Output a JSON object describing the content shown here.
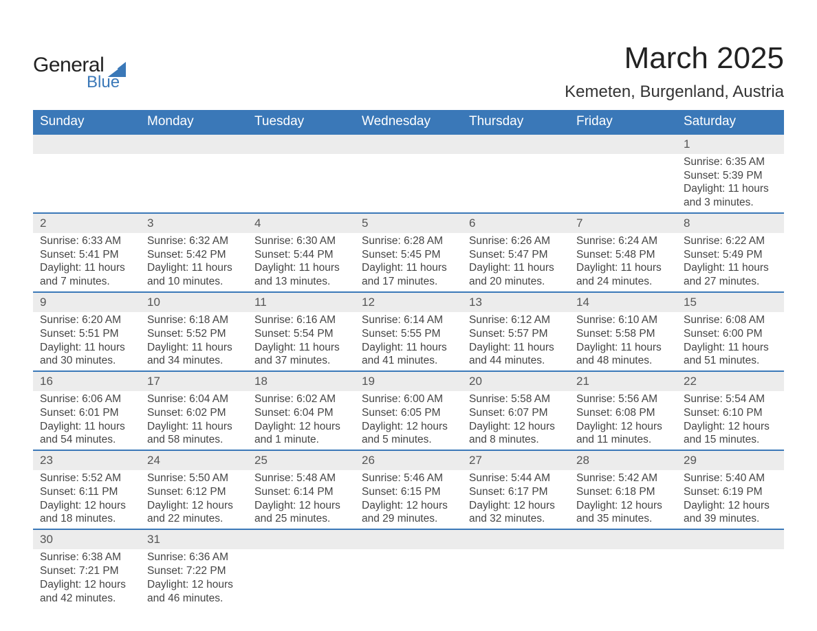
{
  "logo": {
    "text_top": "General",
    "text_bottom": "Blue",
    "triangle_color": "#3a78b8"
  },
  "title": "March 2025",
  "location": "Kemeten, Burgenland, Austria",
  "colors": {
    "header_bg": "#3a78b8",
    "header_text": "#ffffff",
    "daybar_bg": "#ececec",
    "daybar_border": "#3a78b8",
    "body_text": "#444444",
    "page_bg": "#ffffff"
  },
  "typography": {
    "title_fontsize_pt": 33,
    "location_fontsize_pt": 18,
    "header_fontsize_pt": 14,
    "cell_fontsize_pt": 12
  },
  "layout": {
    "columns": 7,
    "rows": 6,
    "first_day_column_index": 6
  },
  "weekdays": [
    "Sunday",
    "Monday",
    "Tuesday",
    "Wednesday",
    "Thursday",
    "Friday",
    "Saturday"
  ],
  "days": [
    {
      "n": 1,
      "sunrise": "6:35 AM",
      "sunset": "5:39 PM",
      "daylight": "11 hours and 3 minutes."
    },
    {
      "n": 2,
      "sunrise": "6:33 AM",
      "sunset": "5:41 PM",
      "daylight": "11 hours and 7 minutes."
    },
    {
      "n": 3,
      "sunrise": "6:32 AM",
      "sunset": "5:42 PM",
      "daylight": "11 hours and 10 minutes."
    },
    {
      "n": 4,
      "sunrise": "6:30 AM",
      "sunset": "5:44 PM",
      "daylight": "11 hours and 13 minutes."
    },
    {
      "n": 5,
      "sunrise": "6:28 AM",
      "sunset": "5:45 PM",
      "daylight": "11 hours and 17 minutes."
    },
    {
      "n": 6,
      "sunrise": "6:26 AM",
      "sunset": "5:47 PM",
      "daylight": "11 hours and 20 minutes."
    },
    {
      "n": 7,
      "sunrise": "6:24 AM",
      "sunset": "5:48 PM",
      "daylight": "11 hours and 24 minutes."
    },
    {
      "n": 8,
      "sunrise": "6:22 AM",
      "sunset": "5:49 PM",
      "daylight": "11 hours and 27 minutes."
    },
    {
      "n": 9,
      "sunrise": "6:20 AM",
      "sunset": "5:51 PM",
      "daylight": "11 hours and 30 minutes."
    },
    {
      "n": 10,
      "sunrise": "6:18 AM",
      "sunset": "5:52 PM",
      "daylight": "11 hours and 34 minutes."
    },
    {
      "n": 11,
      "sunrise": "6:16 AM",
      "sunset": "5:54 PM",
      "daylight": "11 hours and 37 minutes."
    },
    {
      "n": 12,
      "sunrise": "6:14 AM",
      "sunset": "5:55 PM",
      "daylight": "11 hours and 41 minutes."
    },
    {
      "n": 13,
      "sunrise": "6:12 AM",
      "sunset": "5:57 PM",
      "daylight": "11 hours and 44 minutes."
    },
    {
      "n": 14,
      "sunrise": "6:10 AM",
      "sunset": "5:58 PM",
      "daylight": "11 hours and 48 minutes."
    },
    {
      "n": 15,
      "sunrise": "6:08 AM",
      "sunset": "6:00 PM",
      "daylight": "11 hours and 51 minutes."
    },
    {
      "n": 16,
      "sunrise": "6:06 AM",
      "sunset": "6:01 PM",
      "daylight": "11 hours and 54 minutes."
    },
    {
      "n": 17,
      "sunrise": "6:04 AM",
      "sunset": "6:02 PM",
      "daylight": "11 hours and 58 minutes."
    },
    {
      "n": 18,
      "sunrise": "6:02 AM",
      "sunset": "6:04 PM",
      "daylight": "12 hours and 1 minute."
    },
    {
      "n": 19,
      "sunrise": "6:00 AM",
      "sunset": "6:05 PM",
      "daylight": "12 hours and 5 minutes."
    },
    {
      "n": 20,
      "sunrise": "5:58 AM",
      "sunset": "6:07 PM",
      "daylight": "12 hours and 8 minutes."
    },
    {
      "n": 21,
      "sunrise": "5:56 AM",
      "sunset": "6:08 PM",
      "daylight": "12 hours and 11 minutes."
    },
    {
      "n": 22,
      "sunrise": "5:54 AM",
      "sunset": "6:10 PM",
      "daylight": "12 hours and 15 minutes."
    },
    {
      "n": 23,
      "sunrise": "5:52 AM",
      "sunset": "6:11 PM",
      "daylight": "12 hours and 18 minutes."
    },
    {
      "n": 24,
      "sunrise": "5:50 AM",
      "sunset": "6:12 PM",
      "daylight": "12 hours and 22 minutes."
    },
    {
      "n": 25,
      "sunrise": "5:48 AM",
      "sunset": "6:14 PM",
      "daylight": "12 hours and 25 minutes."
    },
    {
      "n": 26,
      "sunrise": "5:46 AM",
      "sunset": "6:15 PM",
      "daylight": "12 hours and 29 minutes."
    },
    {
      "n": 27,
      "sunrise": "5:44 AM",
      "sunset": "6:17 PM",
      "daylight": "12 hours and 32 minutes."
    },
    {
      "n": 28,
      "sunrise": "5:42 AM",
      "sunset": "6:18 PM",
      "daylight": "12 hours and 35 minutes."
    },
    {
      "n": 29,
      "sunrise": "5:40 AM",
      "sunset": "6:19 PM",
      "daylight": "12 hours and 39 minutes."
    },
    {
      "n": 30,
      "sunrise": "6:38 AM",
      "sunset": "7:21 PM",
      "daylight": "12 hours and 42 minutes."
    },
    {
      "n": 31,
      "sunrise": "6:36 AM",
      "sunset": "7:22 PM",
      "daylight": "12 hours and 46 minutes."
    }
  ],
  "labels": {
    "sunrise": "Sunrise:",
    "sunset": "Sunset:",
    "daylight": "Daylight:"
  }
}
